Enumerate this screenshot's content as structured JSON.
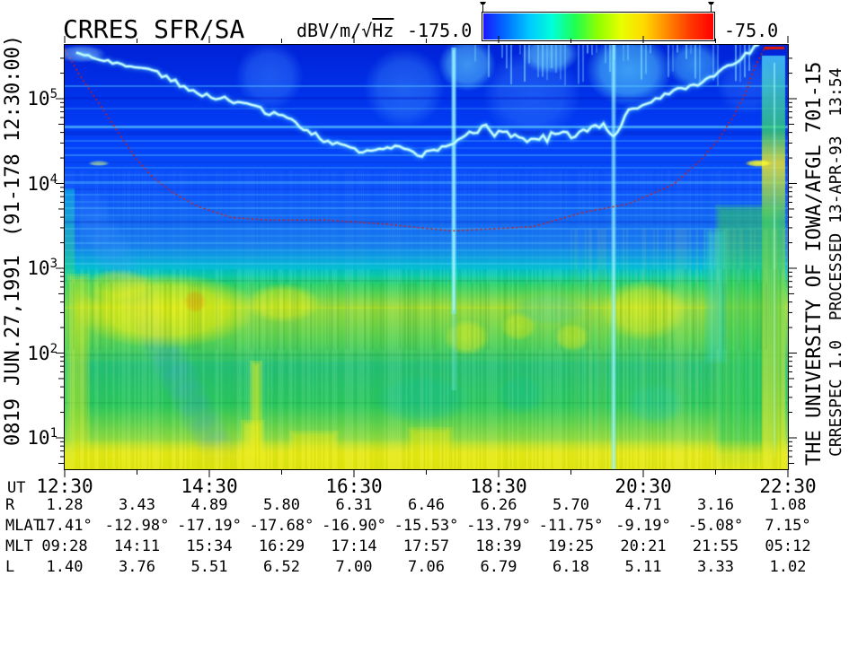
{
  "title": "CRRES SFR/SA",
  "colorbar": {
    "label_prefix": "dBV/m/√",
    "label_radicand": "Hz",
    "min_label": "-175.0",
    "max_label": "-75.0",
    "min_value": -175.0,
    "max_value": -75.0,
    "gradient_stops": [
      "#1818ff",
      "#0070ff",
      "#00c8ff",
      "#00ffd8",
      "#20ff50",
      "#90ff00",
      "#e8ff00",
      "#ffd800",
      "#ff8800",
      "#ff3800",
      "#ff0000"
    ]
  },
  "left_margin_labels": {
    "orbit": "0819",
    "date": "JUN.27,1991",
    "day_start": "(91-178 12:30:00)"
  },
  "right_margin_labels": {
    "institution": "THE UNIVERSITY OF IOWA/AFGL 701-15",
    "processing": "CRRESPEC 1.0  PROCESSED 13-APR-93  13:54"
  },
  "chart_data": {
    "type": "heatmap",
    "title": "CRRES SFR/SA",
    "instrument": "CRRES SFR/SA",
    "colorbar_range": {
      "min": -175.0,
      "max": -75.0,
      "units": "dBV/m/√Hz"
    },
    "x_axis": {
      "label": "UT",
      "tick_labels": [
        "12:30",
        "14:30",
        "16:30",
        "18:30",
        "20:30",
        "22:30"
      ],
      "start_hour": 12.5,
      "end_hour": 22.5,
      "minor_tick_every_hours": 1
    },
    "y_axis": {
      "scale": "log10",
      "unit": "Hz",
      "decade_exponents": [
        "5",
        "4",
        "3",
        "2",
        "1"
      ],
      "top_log10_hz": 5.635,
      "bottom_log10_hz": 0.63
    },
    "ephemeris": {
      "column_times": [
        "12:30",
        "13:30",
        "14:30",
        "15:30",
        "16:30",
        "17:30",
        "18:30",
        "19:30",
        "20:30",
        "21:30",
        "22:30"
      ],
      "rows": [
        {
          "label": "R",
          "values": [
            "1.28",
            "3.43",
            "4.89",
            "5.80",
            "6.31",
            "6.46",
            "6.26",
            "5.70",
            "4.71",
            "3.16",
            "1.08"
          ]
        },
        {
          "label": "MLAT",
          "values": [
            "17.41°",
            "-12.98°",
            "-17.19°",
            "-17.68°",
            "-16.90°",
            "-15.53°",
            "-13.79°",
            "-11.75°",
            "-9.19°",
            "-5.08°",
            "7.15°"
          ]
        },
        {
          "label": "MLT",
          "values": [
            "09:28",
            "14:11",
            "15:34",
            "16:29",
            "17:14",
            "17:57",
            "18:39",
            "19:25",
            "20:21",
            "21:55",
            "05:12"
          ]
        },
        {
          "label": "L",
          "values": [
            "1.40",
            "3.76",
            "5.51",
            "6.52",
            "7.00",
            "7.06",
            "6.79",
            "6.18",
            "5.11",
            "3.33",
            "1.02"
          ]
        }
      ]
    },
    "overlays": {
      "fce_line": {
        "label": "electron cyclotron frequency trace",
        "color": "#e01800",
        "style": "dotted",
        "points_t_logf": [
          [
            12.5,
            5.58
          ],
          [
            12.72,
            5.26
          ],
          [
            12.97,
            4.95
          ],
          [
            13.22,
            4.63
          ],
          [
            13.47,
            4.31
          ],
          [
            13.72,
            4.07
          ],
          [
            14.0,
            3.89
          ],
          [
            14.34,
            3.73
          ],
          [
            14.8,
            3.6
          ],
          [
            15.3,
            3.57
          ],
          [
            16.08,
            3.57
          ],
          [
            16.95,
            3.52
          ],
          [
            17.85,
            3.44
          ],
          [
            18.97,
            3.49
          ],
          [
            19.68,
            3.66
          ],
          [
            20.3,
            3.76
          ],
          [
            20.92,
            3.99
          ],
          [
            21.3,
            4.28
          ],
          [
            21.54,
            4.52
          ],
          [
            21.76,
            4.81
          ],
          [
            21.92,
            5.08
          ],
          [
            22.04,
            5.37
          ],
          [
            22.17,
            5.58
          ],
          [
            22.45,
            5.6
          ]
        ]
      },
      "uhr_band": {
        "label": "upper hybrid resonance band",
        "color": "#a8ffff",
        "points_t_logf": [
          [
            12.66,
            5.55
          ],
          [
            13.1,
            5.44
          ],
          [
            13.72,
            5.32
          ],
          [
            14.34,
            5.07
          ],
          [
            14.96,
            4.95
          ],
          [
            15.58,
            4.76
          ],
          [
            16.08,
            4.52
          ],
          [
            16.57,
            4.39
          ],
          [
            17.07,
            4.42
          ],
          [
            17.44,
            4.34
          ],
          [
            17.88,
            4.47
          ],
          [
            18.15,
            4.66
          ],
          [
            18.56,
            4.58
          ],
          [
            19.06,
            4.52
          ],
          [
            19.56,
            4.6
          ],
          [
            19.95,
            4.68
          ],
          [
            20.09,
            4.53
          ],
          [
            20.3,
            4.87
          ],
          [
            20.92,
            5.08
          ],
          [
            21.42,
            5.23
          ],
          [
            21.79,
            5.44
          ],
          [
            22.1,
            5.64
          ]
        ]
      },
      "burst_times_hours": [
        17.88,
        20.09
      ]
    }
  }
}
